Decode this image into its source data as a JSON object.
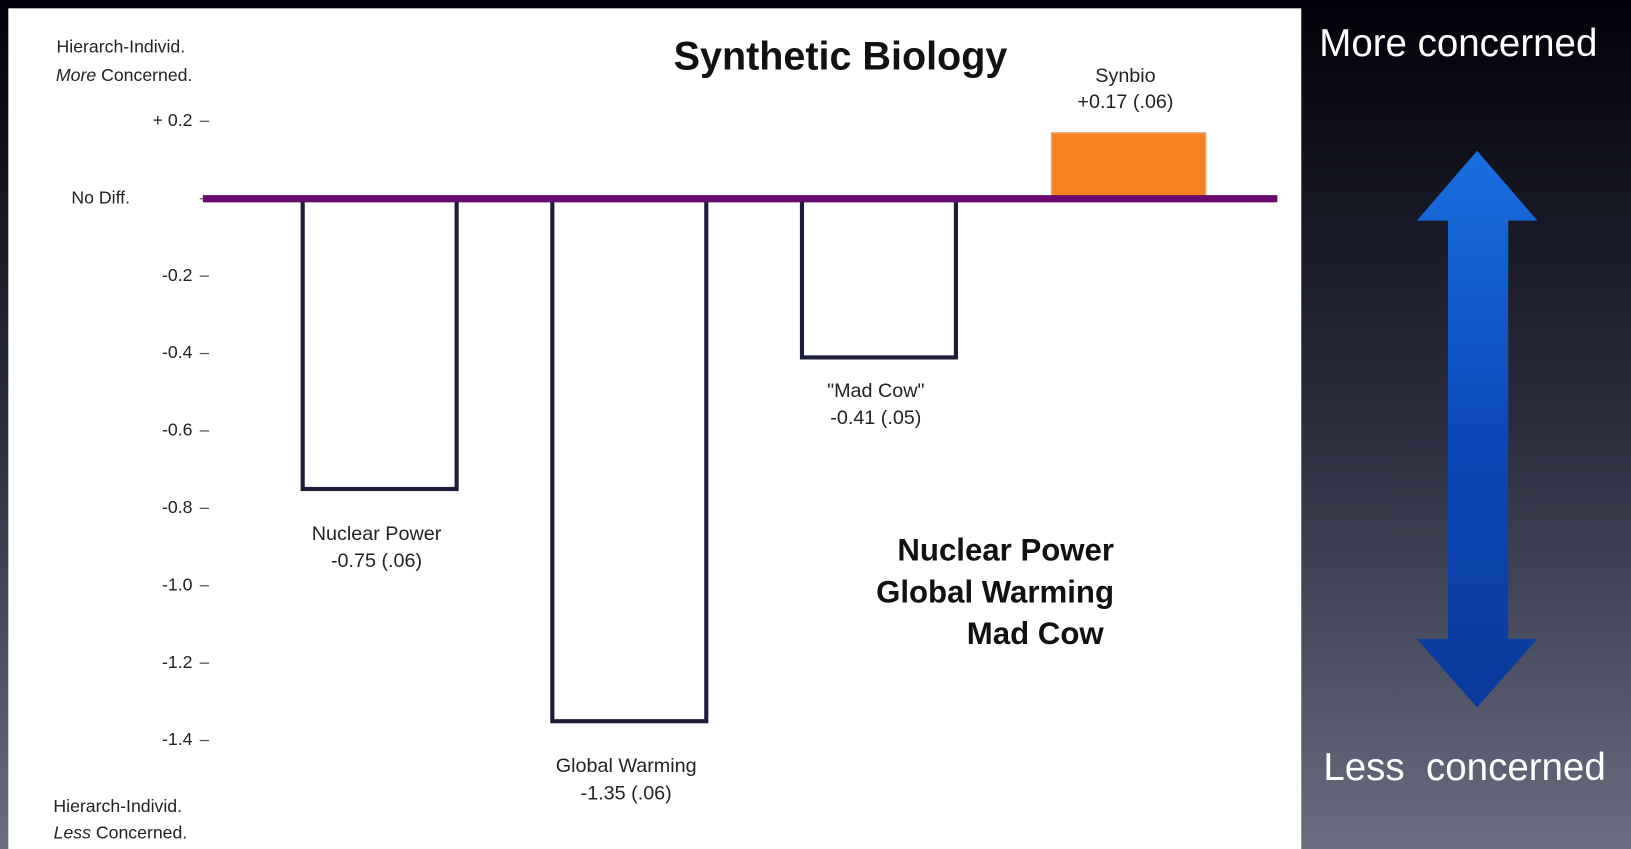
{
  "chart_data": {
    "type": "bar",
    "title": "Synthetic Biology",
    "categories": [
      "Nuclear Power",
      "Global Warming",
      "\"Mad Cow\"",
      "Synbio"
    ],
    "values": [
      -0.75,
      -1.35,
      -0.41,
      0.17
    ],
    "value_labels": [
      "-0.75 (.06)",
      "-1.35 (.06)",
      "-0.41 (.05)",
      "+0.17 (.06)"
    ],
    "colors": [
      "#ffffff",
      "#ffffff",
      "#ffffff",
      "#f5821f"
    ],
    "edgecolors": [
      "#1e1e3c",
      "#1e1e3c",
      "#1e1e3c",
      "#f0a060"
    ],
    "baseline_color": "#6a0a6e",
    "ylim": [
      -1.66,
      0.41
    ],
    "yticks": [
      {
        "value": 0.2,
        "label": "+ 0.2"
      },
      {
        "value": 0,
        "label": "No Diff."
      },
      -0.2,
      -0.4,
      -0.6,
      -0.8,
      {
        "value": -1,
        "label": "-1.0"
      },
      -1.2,
      -1.4
    ],
    "axis_top_label": {
      "line1": "Hierarch-Individ.",
      "emphasis": "More",
      "rest": " Concerned."
    },
    "axis_bottom_label": {
      "line1": "Hierarch-Individ.",
      "emphasis": "Less",
      "rest": " Concerned."
    },
    "annotation_lines": [
      "Nuclear Power",
      "Global Warming",
      "Mad Cow"
    ],
    "side_top_label": "More concerned",
    "side_bottom_label": "Less  concerned"
  }
}
